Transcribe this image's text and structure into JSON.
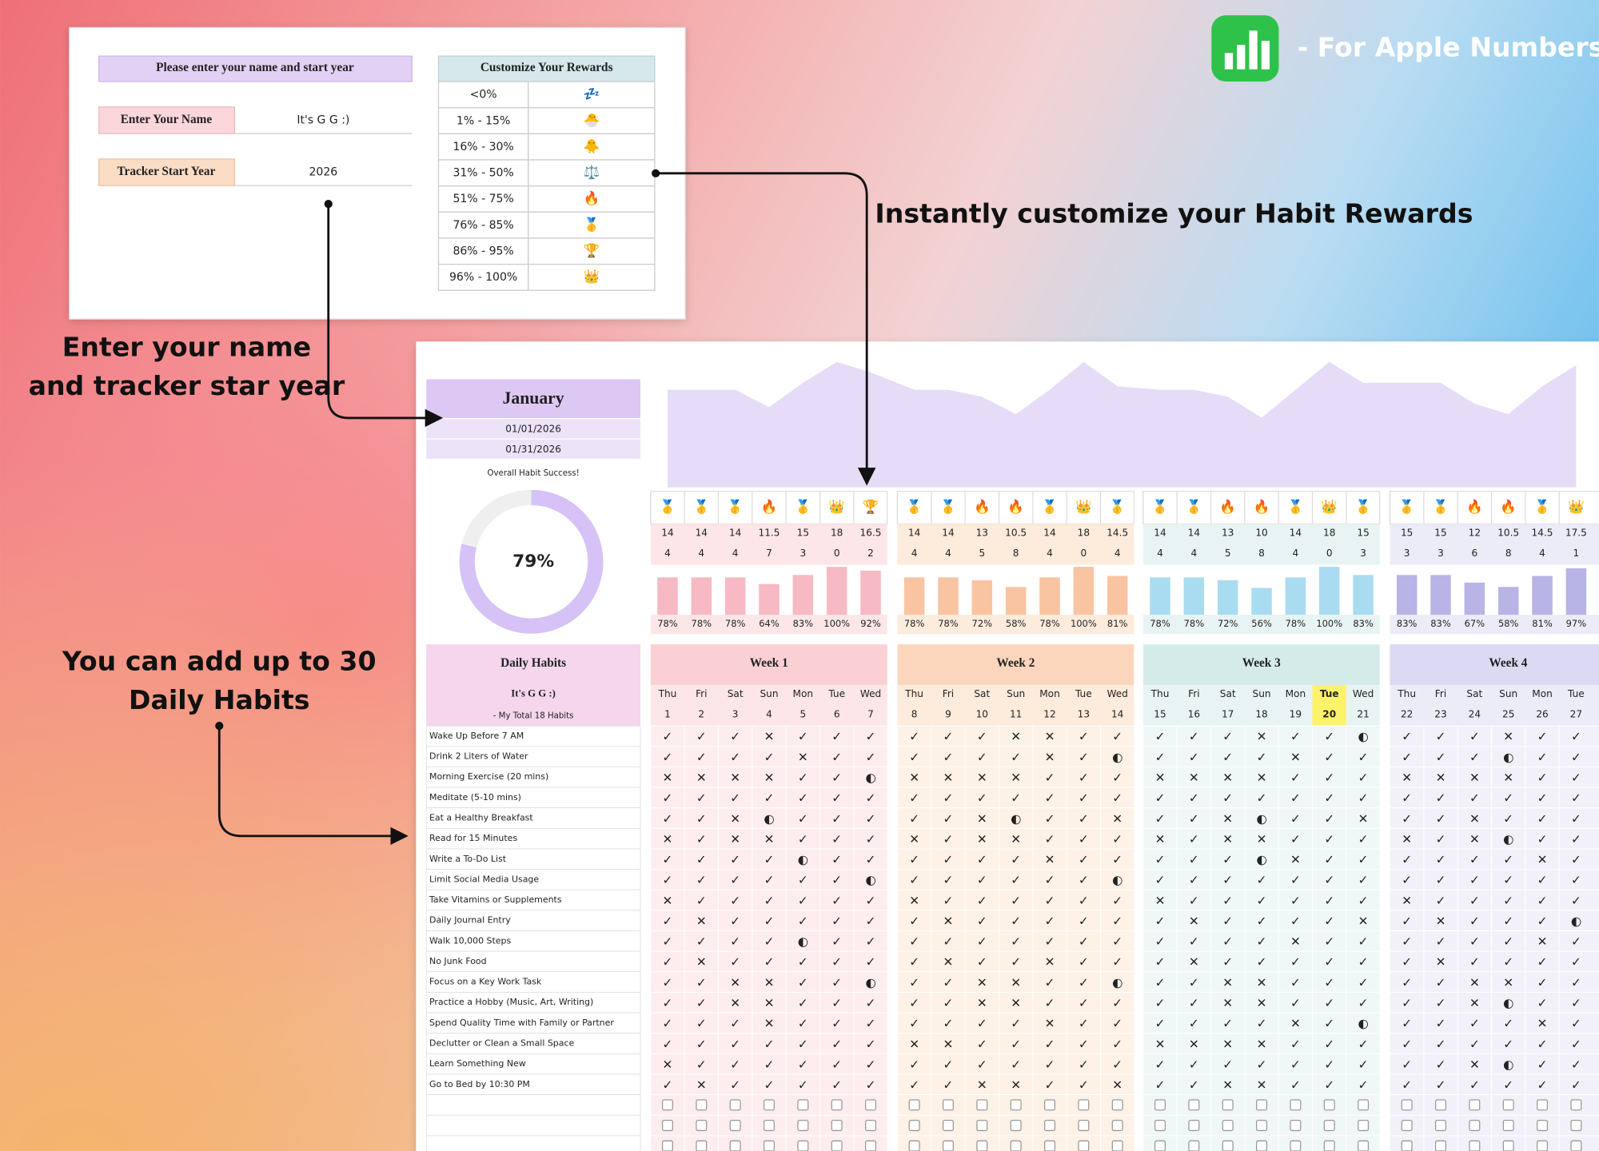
{
  "setup": {
    "title": "Please enter your name and start year",
    "name_label": "Enter Your Name",
    "name": "It's G G :)",
    "year_label": "Tracker Start Year",
    "year": 2026
  },
  "rewards": {
    "title": "Customize Your Rewards",
    "rows": [
      {
        "range": "<0%",
        "icon": "💤"
      },
      {
        "range": "1% - 15%",
        "icon": "🐣"
      },
      {
        "range": "16% - 30%",
        "icon": "🐥"
      },
      {
        "range": "31% - 50%",
        "icon": "⚖️"
      },
      {
        "range": "51% - 75%",
        "icon": "🔥"
      },
      {
        "range": "76% - 85%",
        "icon": "🥇"
      },
      {
        "range": "86% - 95%",
        "icon": "🏆"
      },
      {
        "range": "96% - 100%",
        "icon": "👑"
      }
    ]
  },
  "badge": "- For Apple Numbers Only",
  "annotations": {
    "rewards": "Instantly customize your Habit Rewards",
    "name": [
      "Enter your name",
      "and tracker star year"
    ],
    "habits": [
      "You can add up to 30",
      "Daily Habits"
    ]
  },
  "tracker": {
    "month": "January",
    "start_date": "01/01/2026",
    "end_date": "01/31/2026",
    "success_title": "Overall Habit Success!",
    "success": 79,
    "success_label": "79%",
    "color": "#d6c2f6",
    "habits_title": "Daily Habits",
    "user": "It's G G :)",
    "total_label": "- My Total 18 Habits",
    "habits": [
      "Wake Up Before 7 AM",
      "Drink 2 Liters of Water",
      "Morning Exercise (20 mins)",
      "Meditate (5-10 mins)",
      "Eat a Healthy Breakfast",
      "Read for 15 Minutes",
      "Write a To-Do List",
      "Limit Social Media Usage",
      "Take Vitamins or Supplements",
      "Daily Journal Entry",
      "Walk 10,000 Steps",
      "No Junk Food",
      "Focus on a Key Work Task",
      "Practice a Hobby (Music, Art, Writing)",
      "Spend Quality Time with Family or Partner",
      "Declutter or Clean a Small Space",
      "Learn Something New",
      "Go to Bed by 10:30 PM"
    ]
  },
  "area_ylim": [
    0,
    18
  ],
  "area_color": "#e6dcf7",
  "bar_ylim": [
    0,
    100
  ],
  "highlight_date": 20,
  "mark_colors": {
    "✓": "#3a9e4f",
    "✕": "#e0524f",
    "◐": "#f08a24"
  },
  "weeks": [
    {
      "name": "Week 1",
      "color": "#f7b9c3",
      "header_color": "#fad0d4",
      "tint": "#fde6e8",
      "days": [
        "Thu",
        "Fri",
        "Sat",
        "Sun",
        "Mon",
        "Tue",
        "Wed"
      ],
      "dates": [
        1,
        2,
        3,
        4,
        5,
        6,
        7
      ],
      "emoji": [
        "🥇",
        "🥇",
        "🥇",
        "🔥",
        "🥇",
        "👑",
        "🏆"
      ],
      "scores": [
        14,
        14,
        14,
        11.5,
        15,
        18,
        16.5
      ],
      "missed": [
        4,
        4,
        4,
        7,
        3,
        0,
        2
      ],
      "values": [
        78,
        78,
        78,
        64,
        83,
        100,
        92
      ],
      "value_labels": [
        "78%",
        "78%",
        "78%",
        "64%",
        "83%",
        "100%",
        "92%"
      ],
      "marks": [
        "✓✓✓✕✓✓✓",
        "✓✓✓✓✕✓✓",
        "✕✕✕✕✓✓◐",
        "✓✓✓✓✓✓✓",
        "✓✓✕◐✓✓✓",
        "✕✓✕✕✓✓✓",
        "✓✓✓✓◐✓✓",
        "✓✓✓✓✓✓◐",
        "✕✓✓✓✓✓✓",
        "✓✕✓✓✓✓✓",
        "✓✓✓✓◐✓✓",
        "✓✕✓✓✓✓✓",
        "✓✓✕✕✓✓◐",
        "✓✓✕✕✓✓✓",
        "✓✓✓✕✓✓✓",
        "✓✓✓✓✓✓✓",
        "✕✓✓✓✓✓✓",
        "✓✕✓✓✓✓✓"
      ]
    },
    {
      "name": "Week 2",
      "color": "#f9c4a2",
      "header_color": "#fbd6bd",
      "tint": "#fdebdc",
      "days": [
        "Thu",
        "Fri",
        "Sat",
        "Sun",
        "Mon",
        "Tue",
        "Wed"
      ],
      "dates": [
        8,
        9,
        10,
        11,
        12,
        13,
        14
      ],
      "emoji": [
        "🥇",
        "🥇",
        "🔥",
        "🔥",
        "🥇",
        "👑",
        "🥇"
      ],
      "scores": [
        14,
        14,
        13,
        10.5,
        14,
        18,
        14.5
      ],
      "missed": [
        4,
        4,
        5,
        8,
        4,
        0,
        4
      ],
      "values": [
        78,
        78,
        72,
        58,
        78,
        100,
        81
      ],
      "value_labels": [
        "78%",
        "78%",
        "72%",
        "58%",
        "78%",
        "100%",
        "81%"
      ],
      "marks": [
        "✓✓✓✕✕✓✓",
        "✓✓✓✓✕✓◐",
        "✕✕✕✕✓✓✓",
        "✓✓✓✓✓✓✓",
        "✓✓✕◐✓✓✕",
        "✕✓✕✕✓✓✓",
        "✓✓✓✓✕✓✓",
        "✓✓✓✓✓✓◐",
        "✕✓✓✓✓✓✓",
        "✓✕✓✓✓✓✓",
        "✓✓✓✓✓✓✓",
        "✓✕✓✓✕✓✓",
        "✓✓✕✕✓✓◐",
        "✓✓✕✕✓✓✓",
        "✓✓✓✓✕✓✓",
        "✕✕✓✓✓✓✓",
        "✓✓✓✓✓✓✓",
        "✓✓✕✕✓✓✕"
      ]
    },
    {
      "name": "Week 3",
      "color": "#a9dcf0",
      "header_color": "#d5ebea",
      "tint": "#e8f4f3",
      "days": [
        "Thu",
        "Fri",
        "Sat",
        "Sun",
        "Mon",
        "Tue",
        "Wed"
      ],
      "dates": [
        15,
        16,
        17,
        18,
        19,
        20,
        21
      ],
      "emoji": [
        "🥇",
        "🥇",
        "🔥",
        "🔥",
        "🥇",
        "👑",
        "🥇"
      ],
      "scores": [
        14,
        14,
        13,
        10,
        14,
        18,
        15
      ],
      "missed": [
        4,
        4,
        5,
        8,
        4,
        0,
        3
      ],
      "values": [
        78,
        78,
        72,
        56,
        78,
        100,
        83
      ],
      "value_labels": [
        "78%",
        "78%",
        "72%",
        "56%",
        "78%",
        "100%",
        "83%"
      ],
      "marks": [
        "✓✓✓✕✓✓◐",
        "✓✓✓✓✕✓✓",
        "✕✕✕✕✓✓✓",
        "✓✓✓✓✓✓✓",
        "✓✓✕◐✓✓✕",
        "✕✓✕✕✓✓✓",
        "✓✓✓◐✕✓✓",
        "✓✓✓✓✓✓✓",
        "✕✓✓✓✓✓✓",
        "✓✕✓✓✓✓✕",
        "✓✓✓✓✕✓✓",
        "✓✕✓✓✓✓✓",
        "✓✓✕✕✓✓✓",
        "✓✓✕✕✓✓✓",
        "✓✓✓✓✕✓◐",
        "✕✕✕✕✓✓✓",
        "✓✓✓✓✓✓✓",
        "✓✓✕✕✓✓✓"
      ]
    },
    {
      "name": "Week 4",
      "color": "#b8b4e6",
      "header_color": "#dcdaf2",
      "tint": "#ecebf8",
      "days": [
        "Thu",
        "Fri",
        "Sat",
        "Sun",
        "Mon",
        "Tue"
      ],
      "dates": [
        22,
        23,
        24,
        25,
        26,
        27
      ],
      "emoji": [
        "🥇",
        "🥇",
        "🔥",
        "🔥",
        "🥇",
        "👑"
      ],
      "scores": [
        15,
        15,
        12,
        10.5,
        14.5,
        17.5
      ],
      "missed": [
        3,
        3,
        6,
        8,
        4,
        1
      ],
      "values": [
        83,
        83,
        67,
        58,
        81,
        97
      ],
      "value_labels": [
        "83%",
        "83%",
        "67%",
        "58%",
        "81%",
        "97%"
      ],
      "marks": [
        "✓✓✓✕✓✓",
        "✓✓✓◐✓✓",
        "✕✕✕✕✓✓",
        "✓✓✓✓✓✓",
        "✓✓✕✓✓✓",
        "✕✓✕◐✓✓",
        "✓✓✓✓✕✓",
        "✓✓✓✓✓✓",
        "✕✓✓✓✓✓",
        "✓✕✓✓✓◐",
        "✓✓✓✓✕✓",
        "✓✕✓✓✓✓",
        "✓✓✕✕✓✓",
        "✓✓✕◐✓✓",
        "✓✓✓✓✕✓",
        "✓✓✓✓✓✓",
        "✓✓✕◐✓✓",
        "✓✓✓✓✓✓"
      ]
    }
  ]
}
